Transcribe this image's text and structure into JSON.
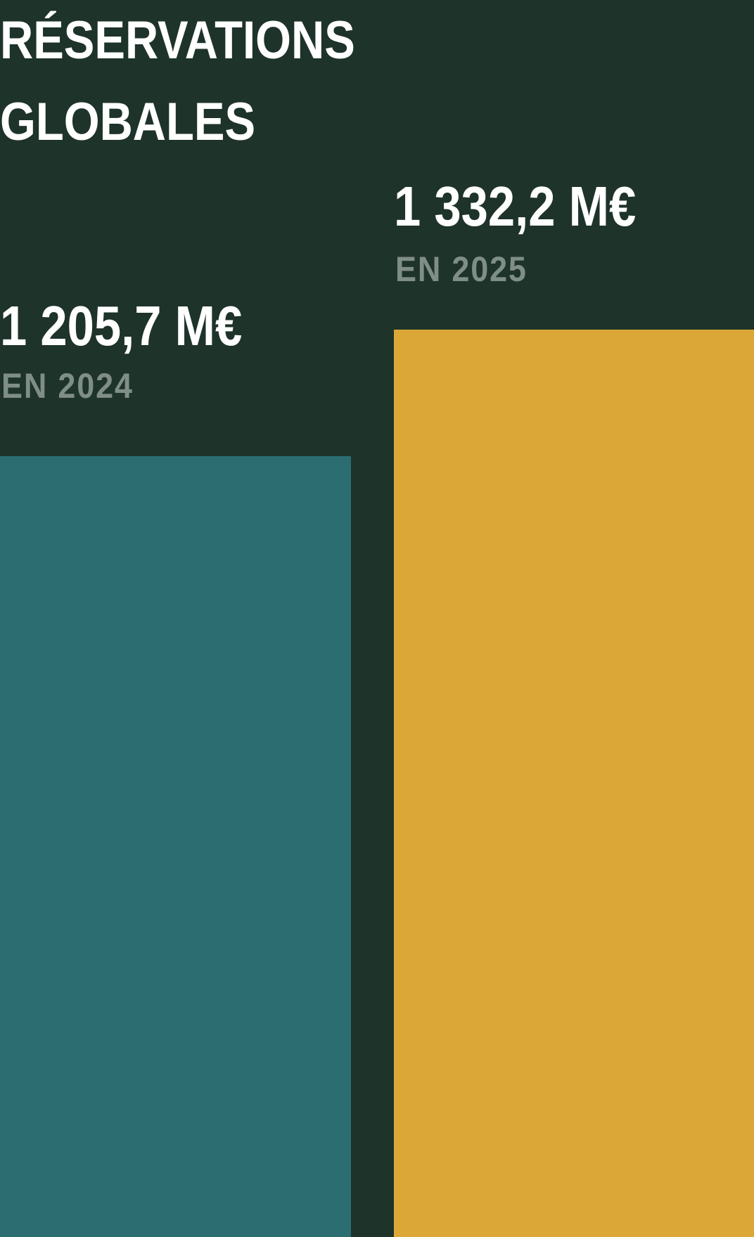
{
  "chart_data": {
    "type": "bar",
    "title": "RÉSERVATIONS GLOBALES",
    "title_lines": [
      "RÉSERVATIONS",
      "GLOBALES"
    ],
    "categories": [
      "EN 2024",
      "EN 2025"
    ],
    "values": [
      1205.7,
      1332.2
    ],
    "value_labels": [
      "1 205,7 M€",
      "1 332,2 M€"
    ],
    "unit": "M€",
    "colors": {
      "background": "#1e3329",
      "bar_2024": "#2b6d71",
      "bar_2025": "#dba838",
      "year_label": "#7f8e86",
      "text": "#ffffff"
    }
  }
}
